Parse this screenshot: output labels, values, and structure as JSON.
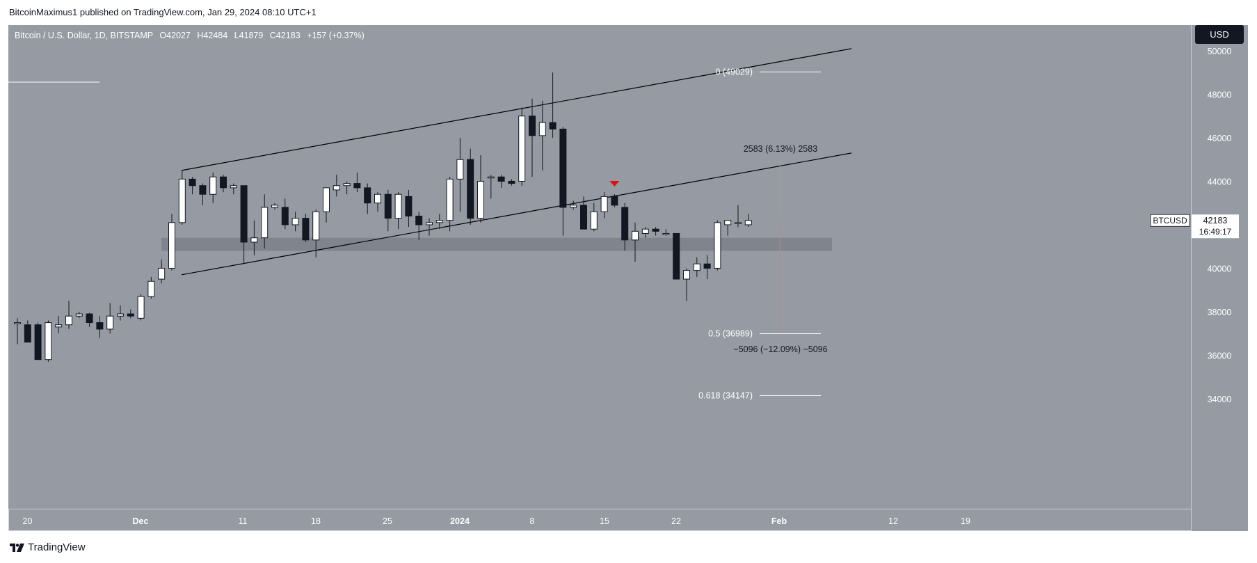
{
  "header": {
    "attribution": "BitcoinMaximus1 published on TradingView.com, Jan 29, 2024 08:10 UTC+1"
  },
  "legend": {
    "symbol": "Bitcoin / U.S. Dollar, 1D, BITSTAMP",
    "o_label": "O",
    "o_value": "42027",
    "h_label": "H",
    "h_value": "42484",
    "l_label": "L",
    "l_value": "41879",
    "c_label": "C",
    "c_value": "42183",
    "change": "+157 (+0.37%)"
  },
  "currency_button": "USD",
  "price_label": {
    "symbol": "BTCUSD",
    "price": "42183",
    "countdown": "16:49:17"
  },
  "footer": {
    "brand": "TradingView"
  },
  "colors": {
    "background": "#959aa3",
    "up_candle": "#ffffff",
    "down_candle": "#131722",
    "wick": "#131722",
    "channel": "#000000",
    "marker": "#e01010",
    "support_zone": "#7c8089"
  },
  "chart_data": {
    "type": "candlestick",
    "y_ticks": [
      34000,
      36000,
      38000,
      40000,
      42000,
      44000,
      46000,
      48000,
      50000
    ],
    "x_ticks": [
      "20",
      "Dec",
      "11",
      "18",
      "25",
      "2024",
      "8",
      "15",
      "22",
      "Feb",
      "12",
      "19"
    ],
    "candles": [
      {
        "o": 37500,
        "h": 37700,
        "l": 36500,
        "c": 37500
      },
      {
        "o": 37400,
        "h": 37600,
        "l": 36600,
        "c": 36600
      },
      {
        "o": 37400,
        "h": 37500,
        "l": 35800,
        "c": 35800
      },
      {
        "o": 35800,
        "h": 37600,
        "l": 35700,
        "c": 37500
      },
      {
        "o": 37300,
        "h": 37800,
        "l": 37000,
        "c": 37400
      },
      {
        "o": 37400,
        "h": 38500,
        "l": 37200,
        "c": 37800
      },
      {
        "o": 37800,
        "h": 38000,
        "l": 37700,
        "c": 37900
      },
      {
        "o": 37900,
        "h": 37950,
        "l": 37300,
        "c": 37500
      },
      {
        "o": 37500,
        "h": 37800,
        "l": 36800,
        "c": 37200
      },
      {
        "o": 37200,
        "h": 38400,
        "l": 37000,
        "c": 37800
      },
      {
        "o": 37800,
        "h": 38300,
        "l": 37600,
        "c": 37900
      },
      {
        "o": 37900,
        "h": 38100,
        "l": 37700,
        "c": 37800
      },
      {
        "o": 37700,
        "h": 38800,
        "l": 37600,
        "c": 38700
      },
      {
        "o": 38700,
        "h": 39600,
        "l": 38600,
        "c": 39400
      },
      {
        "o": 39500,
        "h": 40400,
        "l": 39300,
        "c": 40000
      },
      {
        "o": 40000,
        "h": 42500,
        "l": 39900,
        "c": 42100
      },
      {
        "o": 42100,
        "h": 44500,
        "l": 42000,
        "c": 44100
      },
      {
        "o": 44100,
        "h": 44200,
        "l": 43400,
        "c": 43800
      },
      {
        "o": 43800,
        "h": 43900,
        "l": 42900,
        "c": 43400
      },
      {
        "o": 43400,
        "h": 44400,
        "l": 43000,
        "c": 44200
      },
      {
        "o": 44200,
        "h": 44300,
        "l": 43500,
        "c": 43700
      },
      {
        "o": 43700,
        "h": 43900,
        "l": 43400,
        "c": 43800
      },
      {
        "o": 43800,
        "h": 43800,
        "l": 40200,
        "c": 41200
      },
      {
        "o": 41200,
        "h": 42200,
        "l": 40600,
        "c": 41400
      },
      {
        "o": 41400,
        "h": 43400,
        "l": 40900,
        "c": 42800
      },
      {
        "o": 42800,
        "h": 43000,
        "l": 42700,
        "c": 42900
      },
      {
        "o": 42800,
        "h": 43200,
        "l": 41800,
        "c": 42000
      },
      {
        "o": 42000,
        "h": 42600,
        "l": 41700,
        "c": 42300
      },
      {
        "o": 42300,
        "h": 42500,
        "l": 41200,
        "c": 41300
      },
      {
        "o": 41300,
        "h": 42700,
        "l": 40500,
        "c": 42600
      },
      {
        "o": 42600,
        "h": 43600,
        "l": 42100,
        "c": 43700
      },
      {
        "o": 43600,
        "h": 44300,
        "l": 43300,
        "c": 43800
      },
      {
        "o": 43800,
        "h": 44000,
        "l": 43400,
        "c": 43900
      },
      {
        "o": 43900,
        "h": 44400,
        "l": 43500,
        "c": 43700
      },
      {
        "o": 43700,
        "h": 43900,
        "l": 42500,
        "c": 43000
      },
      {
        "o": 43000,
        "h": 43500,
        "l": 42600,
        "c": 43400
      },
      {
        "o": 43400,
        "h": 43600,
        "l": 41700,
        "c": 42300
      },
      {
        "o": 42300,
        "h": 43500,
        "l": 41800,
        "c": 43400
      },
      {
        "o": 43300,
        "h": 43600,
        "l": 41900,
        "c": 42400
      },
      {
        "o": 42400,
        "h": 42600,
        "l": 41300,
        "c": 42000
      },
      {
        "o": 42000,
        "h": 42300,
        "l": 41500,
        "c": 42100
      },
      {
        "o": 42100,
        "h": 42500,
        "l": 41800,
        "c": 42200
      },
      {
        "o": 42200,
        "h": 44200,
        "l": 41700,
        "c": 44100
      },
      {
        "o": 44100,
        "h": 46000,
        "l": 42600,
        "c": 45000
      },
      {
        "o": 45000,
        "h": 45500,
        "l": 42000,
        "c": 42300
      },
      {
        "o": 42300,
        "h": 45200,
        "l": 42100,
        "c": 44000
      },
      {
        "o": 44200,
        "h": 44300,
        "l": 43200,
        "c": 44200
      },
      {
        "o": 44200,
        "h": 44300,
        "l": 43700,
        "c": 44000
      },
      {
        "o": 44000,
        "h": 44100,
        "l": 43800,
        "c": 43900
      },
      {
        "o": 44000,
        "h": 47400,
        "l": 43800,
        "c": 47000
      },
      {
        "o": 47000,
        "h": 47800,
        "l": 44200,
        "c": 46100
      },
      {
        "o": 46100,
        "h": 47700,
        "l": 44500,
        "c": 46700
      },
      {
        "o": 46700,
        "h": 49000,
        "l": 46000,
        "c": 46400
      },
      {
        "o": 46400,
        "h": 46500,
        "l": 41500,
        "c": 42800
      },
      {
        "o": 42800,
        "h": 43100,
        "l": 42700,
        "c": 42900
      },
      {
        "o": 42900,
        "h": 43300,
        "l": 41800,
        "c": 41800
      },
      {
        "o": 41800,
        "h": 43000,
        "l": 41700,
        "c": 42600
      },
      {
        "o": 42600,
        "h": 43500,
        "l": 42300,
        "c": 43300
      },
      {
        "o": 43300,
        "h": 43400,
        "l": 42800,
        "c": 42900
      },
      {
        "o": 42800,
        "h": 43000,
        "l": 40800,
        "c": 41300
      },
      {
        "o": 41300,
        "h": 42100,
        "l": 40300,
        "c": 41700
      },
      {
        "o": 41600,
        "h": 41900,
        "l": 41400,
        "c": 41800
      },
      {
        "o": 41800,
        "h": 41900,
        "l": 41500,
        "c": 41700
      },
      {
        "o": 41600,
        "h": 41800,
        "l": 41500,
        "c": 41600
      },
      {
        "o": 41600,
        "h": 41600,
        "l": 39500,
        "c": 39500
      },
      {
        "o": 39500,
        "h": 40000,
        "l": 38500,
        "c": 39900
      },
      {
        "o": 39900,
        "h": 40500,
        "l": 39600,
        "c": 40200
      },
      {
        "o": 40200,
        "h": 40600,
        "l": 39500,
        "c": 40000
      },
      {
        "o": 40000,
        "h": 42200,
        "l": 39900,
        "c": 42100
      },
      {
        "o": 42000,
        "h": 42200,
        "l": 41500,
        "c": 42200
      },
      {
        "o": 42100,
        "h": 42900,
        "l": 41900,
        "c": 42100
      },
      {
        "o": 42000,
        "h": 42500,
        "l": 41900,
        "c": 42200
      }
    ],
    "channel": {
      "upper_start": {
        "date": "Dec 5",
        "price": 44500
      },
      "upper_end": {
        "date": "Feb 6",
        "price": 50100
      },
      "lower_start": {
        "date": "Dec 5",
        "price": 39700
      },
      "lower_end": {
        "date": "Feb 6",
        "price": 45300
      }
    },
    "support_zone": {
      "low": 40800,
      "high": 41400
    },
    "fib_levels": [
      {
        "label": "0 (49029)",
        "price": 49029
      },
      {
        "label": "0.5 (36989)",
        "price": 36989
      },
      {
        "label": "0.618 (34147)",
        "price": 34147
      }
    ],
    "measurements": [
      {
        "label": "2583 (6.13%) 2583"
      },
      {
        "label": "−5096 (−12.09%) −5096"
      }
    ],
    "last_price": 42183
  }
}
